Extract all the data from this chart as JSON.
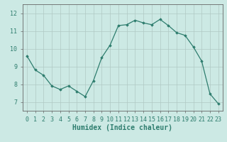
{
  "x": [
    0,
    1,
    2,
    3,
    4,
    5,
    6,
    7,
    8,
    9,
    10,
    11,
    12,
    13,
    14,
    15,
    16,
    17,
    18,
    19,
    20,
    21,
    22,
    23
  ],
  "y": [
    9.6,
    8.8,
    8.5,
    7.9,
    7.7,
    7.9,
    7.6,
    7.3,
    8.2,
    9.5,
    10.2,
    11.3,
    11.35,
    11.6,
    11.45,
    11.35,
    11.65,
    11.3,
    10.9,
    10.75,
    10.1,
    9.3,
    7.45,
    6.9
  ],
  "line_color": "#2e7d6e",
  "marker": "D",
  "marker_size": 1.8,
  "linewidth": 0.9,
  "bg_color": "#cce9e4",
  "grid_color": "#b0c8c4",
  "xlabel": "Humidex (Indice chaleur)",
  "xlabel_fontsize": 7,
  "tick_fontsize": 6,
  "ylim": [
    6.5,
    12.5
  ],
  "xlim": [
    -0.5,
    23.5
  ],
  "yticks": [
    7,
    8,
    9,
    10,
    11,
    12
  ],
  "xticks": [
    0,
    1,
    2,
    3,
    4,
    5,
    6,
    7,
    8,
    9,
    10,
    11,
    12,
    13,
    14,
    15,
    16,
    17,
    18,
    19,
    20,
    21,
    22,
    23
  ],
  "spine_color": "#666666",
  "tick_color": "#2e7d6e",
  "label_color": "#2e7d6e"
}
